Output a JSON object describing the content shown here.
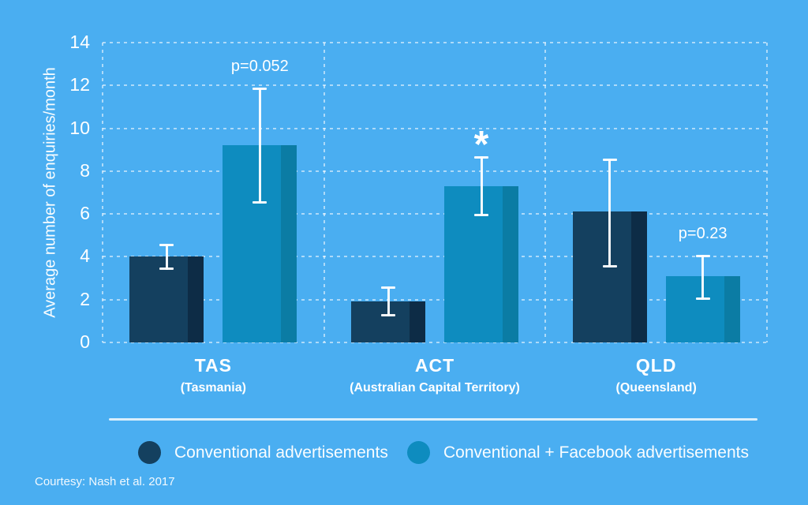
{
  "page": {
    "background_color": "#4AAEF1"
  },
  "chart_data": {
    "type": "bar",
    "title": "",
    "ylabel": "Average number of enquiries/month",
    "xlabel": "",
    "ylim": [
      0,
      14
    ],
    "yticks": [
      0,
      2,
      4,
      6,
      8,
      10,
      12,
      14
    ],
    "grid": "dashed-white",
    "legend_position": "bottom",
    "error_bar_color": "#FFFFFF",
    "categories": [
      {
        "code": "TAS",
        "name": "(Tasmania)"
      },
      {
        "code": "ACT",
        "name": "(Australian Capital Territory)"
      },
      {
        "code": "QLD",
        "name": "(Queensland)"
      }
    ],
    "series": [
      {
        "name": "Conventional advertisements",
        "color": "#14405F",
        "shade_color": "#0D2C46",
        "values": [
          4.0,
          1.9,
          6.1
        ],
        "error_low": [
          3.4,
          1.2,
          3.5
        ],
        "error_high": [
          4.6,
          2.6,
          8.6
        ]
      },
      {
        "name": "Conventional + Facebook advertisements",
        "color": "#0E8CBF",
        "shade_color": "#0B7CA4",
        "values": [
          9.2,
          7.3,
          3.1
        ],
        "error_low": [
          6.5,
          5.9,
          2.0
        ],
        "error_high": [
          11.9,
          8.7,
          4.1
        ],
        "annotations": [
          "p=0.052",
          "*",
          "p=0.23"
        ]
      }
    ],
    "footnote": "Courtesy: Nash et al. 2017"
  }
}
